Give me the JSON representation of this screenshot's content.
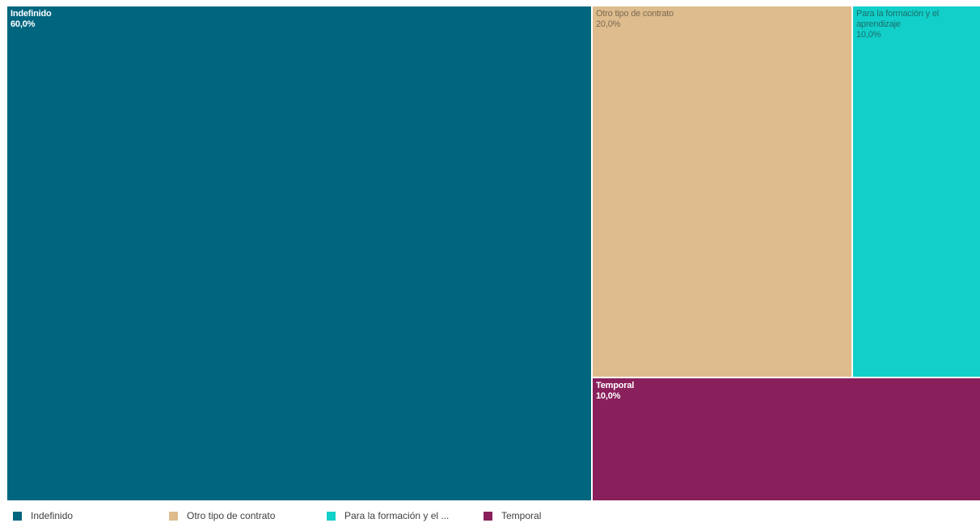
{
  "chart_data": {
    "type": "treemap",
    "title": "",
    "items": [
      {
        "name": "Indefinido",
        "value": 60.0,
        "label": "60,0%",
        "color": "#006680"
      },
      {
        "name": "Otro tipo de contrato",
        "value": 20.0,
        "label": "20,0%",
        "color": "#DEBC8D"
      },
      {
        "name": "Para la formación y el aprendizaje",
        "value": 10.0,
        "label": "10,0%",
        "color": "#12CFC9"
      },
      {
        "name": "Temporal",
        "value": 10.0,
        "label": "10,0%",
        "color": "#89205C"
      }
    ],
    "legend": {
      "position": "bottom-left",
      "entries": [
        "Indefinido",
        "Otro tipo de contrato",
        "Para la formación y el ...",
        "Temporal"
      ]
    }
  }
}
